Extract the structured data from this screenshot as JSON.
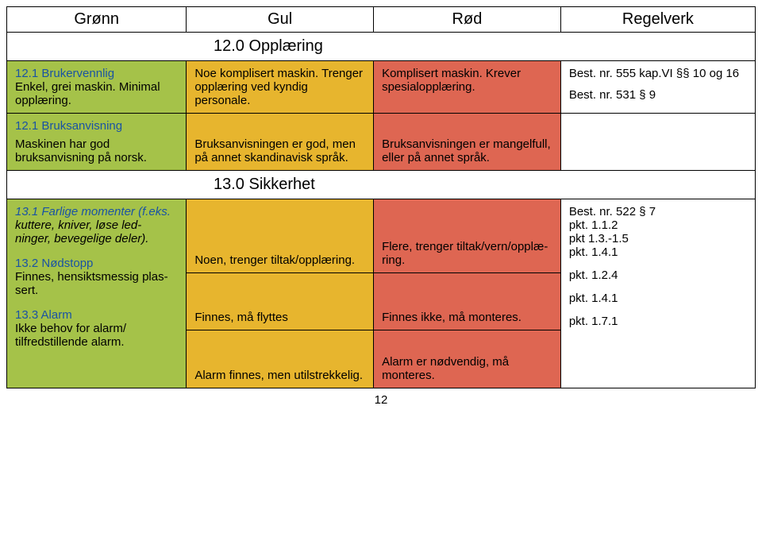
{
  "colors": {
    "green": "#a5c249",
    "yellow": "#e7b52e",
    "red": "#de6652",
    "white": "#ffffff",
    "title_blue": "#1a53a3"
  },
  "header": {
    "c1": "Grønn",
    "c2": "Gul",
    "c3": "Rød",
    "c4": "Regelverk"
  },
  "sec12": {
    "title": "12.0   Opplæring",
    "row": {
      "g": {
        "t": "12.1 Brukervennlig",
        "b": "Enkel, grei maskin. Minimal opplæring."
      },
      "y": "Noe komplisert maskin. Trenger opplæring ved kyndig personale.",
      "r": "Komplisert maskin. Krever spesialopplæring.",
      "reg1": "Best. nr. 555 kap.VI §§ 10 og 16",
      "reg2": "Best. nr. 531 § 9"
    }
  },
  "sec12_1": {
    "g": {
      "t": "12.1 Bruksanvisning",
      "b": "Maskinen har god bruksanvisning på norsk."
    },
    "y": "Bruksanvisningen er god, men på annet skandinavisk språk.",
    "r": "Bruksanvisningen er mangel­full, eller på annet språk."
  },
  "sec13": {
    "title": "13.0    Sikkerhet",
    "left": {
      "p1t": "13.1 Farlige momenter (f.eks.",
      "p1b": "kuttere, kniver, løse led-          ninger, bevegelige deler).",
      "p2t": "13.2 Nødstopp",
      "p2b": "Finnes, hensiktsmessig plas­sert.",
      "p3t": "13.3 Alarm",
      "p3b": "Ikke behov for alarm/ tilfredstillende alarm."
    },
    "y1": "Noen, trenger tiltak/opplæring.",
    "y2": "Finnes, må flyttes",
    "y3": "Alarm finnes, men utilstrekkelig.",
    "r1": "Flere, trenger tiltak/vern/opplæ­ring.",
    "r2": "Finnes ikke, må monteres.",
    "r3": "Alarm er nødvendig, må monteres.",
    "reg": {
      "l1": "Best. nr. 522 § 7",
      "l2": "pkt. 1.1.2",
      "l3": "pkt 1.3.-1.5",
      "l4": "pkt. 1.4.1",
      "l5": "pkt. 1.2.4",
      "l6": "pkt. 1.4.1",
      "l7": "pkt. 1.7.1"
    }
  },
  "pagenum": "12"
}
